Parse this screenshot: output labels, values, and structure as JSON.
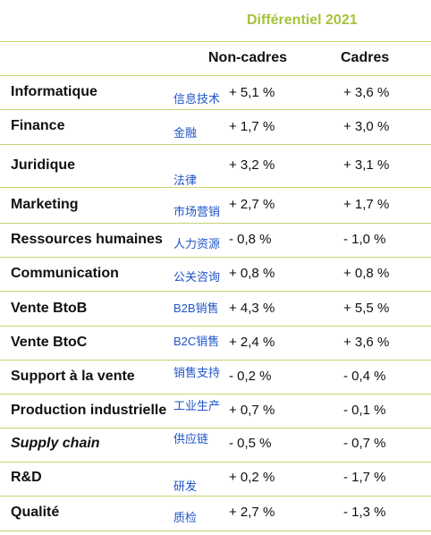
{
  "header": {
    "title": "Différentiel 2021",
    "col_noncadres": "Non-cadres",
    "col_cadres": "Cadres"
  },
  "rows": [
    {
      "label": "Informatique",
      "cn": "信息技术",
      "noncadres": "+ 5,1 %",
      "cadres": "+ 3,6 %"
    },
    {
      "label": "Finance",
      "cn": "金融",
      "noncadres": "+ 1,7 %",
      "cadres": "+ 3,0 %"
    },
    {
      "label": "Juridique",
      "cn": "法律",
      "noncadres": "+ 3,2 %",
      "cadres": "+ 3,1 %"
    },
    {
      "label": "Marketing",
      "cn": "市场营销",
      "noncadres": "+ 2,7 %",
      "cadres": "+ 1,7 %"
    },
    {
      "label": "Ressources humaines",
      "cn": "人力资源",
      "noncadres": "- 0,8 %",
      "cadres": "- 1,0 %"
    },
    {
      "label": "Communication",
      "cn": "公关咨询",
      "noncadres": "+ 0,8 %",
      "cadres": "+ 0,8 %"
    },
    {
      "label": "Vente BtoB",
      "cn": "B2B销售",
      "noncadres": "+ 4,3 %",
      "cadres": "+ 5,5 %"
    },
    {
      "label": "Vente BtoC",
      "cn": "B2C销售",
      "noncadres": "+ 2,4 %",
      "cadres": "+ 3,6 %"
    },
    {
      "label": "Support à la vente",
      "cn": "销售支持",
      "noncadres": "- 0,2 %",
      "cadres": "- 0,4 %"
    },
    {
      "label": "Production industrielle",
      "cn": "工业生产",
      "noncadres": "+ 0,7 %",
      "cadres": "- 0,1 %"
    },
    {
      "label": "Supply chain",
      "cn": "供应链",
      "noncadres": "- 0,5 %",
      "cadres": "- 0,7 %"
    },
    {
      "label": "R&D",
      "cn": "研发",
      "noncadres": "+ 0,2 %",
      "cadres": "- 1,7 %"
    },
    {
      "label": "Qualité",
      "cn": "质检",
      "noncadres": "+ 2,7 %",
      "cadres": "- 1,3 %"
    }
  ]
}
